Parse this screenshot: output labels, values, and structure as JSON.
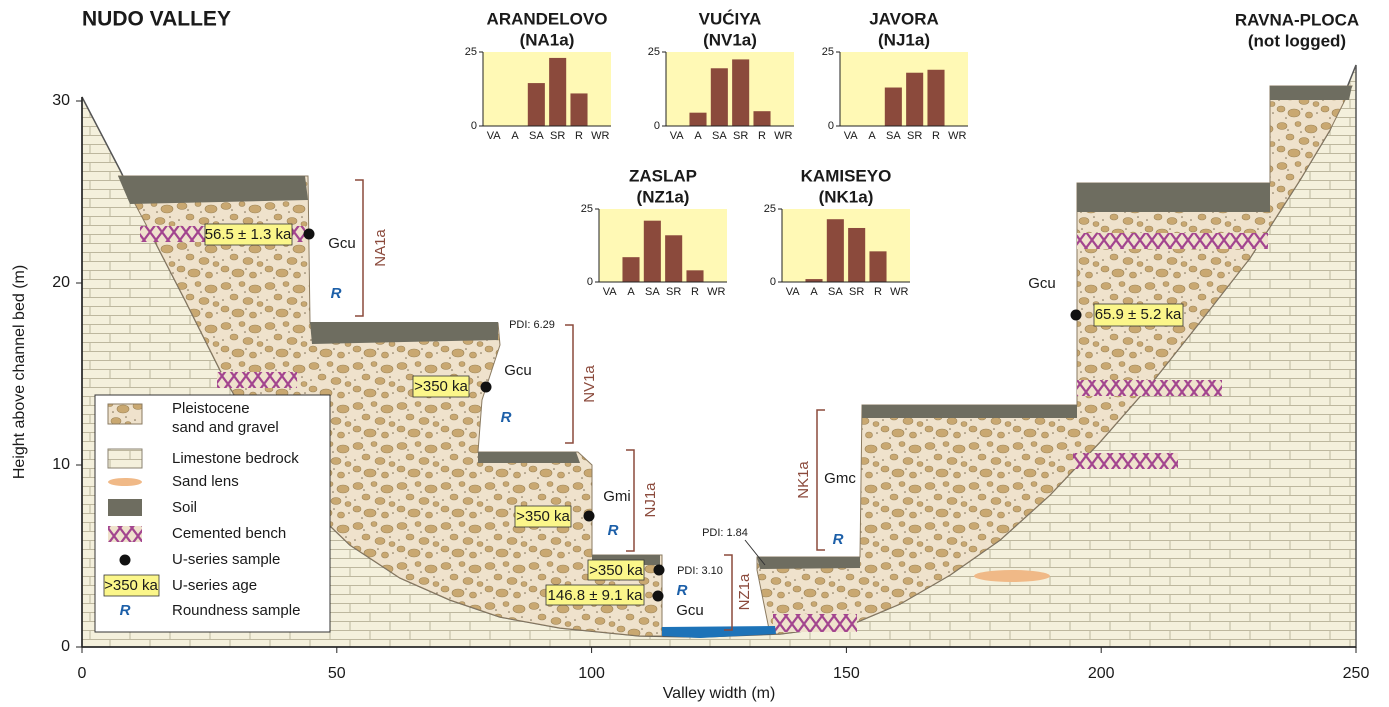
{
  "chart_data": [
    {
      "type": "section",
      "title": "NUDO VALLEY",
      "x_label": "Valley width (m)",
      "y_label": "Height above channel bed (m)",
      "xlim": [
        0,
        250
      ],
      "ylim": [
        0,
        30
      ],
      "xticks": [
        0,
        50,
        100,
        150,
        200,
        250
      ],
      "yticks": [
        0,
        10,
        20,
        30
      ],
      "site_label": "RAVNA-PLOCA",
      "site_note": "(not logged)",
      "units": [
        "NA1a",
        "NV1a",
        "NJ1a",
        "NZ1a",
        "NK1a"
      ],
      "facies": [
        "Gcu",
        "Gcu",
        "Gmi",
        "Gcu",
        "Gmc",
        "Gcu"
      ],
      "ages": [
        "56.5 ± 1.3 ka",
        ">350 ka",
        ">350 ka",
        ">350 ka",
        "146.8 ± 9.1 ka",
        "65.9 ± 5.2 ka"
      ],
      "pdi": [
        "PDI: 6.29",
        "PDI: 3.10",
        "PDI: 1.84"
      ],
      "roundness_marker": "R",
      "legend": [
        {
          "label": [
            "Pleistocene",
            "sand and gravel"
          ]
        },
        {
          "label": [
            "Limestone bedrock"
          ]
        },
        {
          "label": [
            "Sand lens"
          ]
        },
        {
          "label": [
            "Soil"
          ]
        },
        {
          "label": [
            "Cemented bench"
          ]
        },
        {
          "label": [
            "U-series sample"
          ]
        },
        {
          "label": [
            "U-series age"
          ],
          "symbol": ">350 ka"
        },
        {
          "label": [
            "Roundness sample"
          ]
        }
      ]
    },
    {
      "type": "bar",
      "title": "ARANDELOVO",
      "subtitle": "(NA1a)",
      "categories": [
        "VA",
        "A",
        "SA",
        "SR",
        "R",
        "WR"
      ],
      "values": [
        0,
        0,
        14.5,
        23,
        11,
        0
      ],
      "color": "#8b4a3c",
      "ylim": [
        0,
        25
      ],
      "yticks": [
        0,
        25
      ]
    },
    {
      "type": "bar",
      "title": "VUĆIYA",
      "subtitle": "(NV1a)",
      "categories": [
        "VA",
        "A",
        "SA",
        "SR",
        "R",
        "WR"
      ],
      "values": [
        0,
        4.5,
        19.5,
        22.5,
        5,
        0
      ],
      "color": "#8b4a3c",
      "ylim": [
        0,
        25
      ],
      "yticks": [
        0,
        25
      ]
    },
    {
      "type": "bar",
      "title": "JAVORA",
      "subtitle": "(NJ1a)",
      "categories": [
        "VA",
        "A",
        "SA",
        "SR",
        "R",
        "WR"
      ],
      "values": [
        0,
        0,
        13,
        18,
        19,
        0
      ],
      "color": "#8b4a3c",
      "ylim": [
        0,
        25
      ],
      "yticks": [
        0,
        25
      ]
    },
    {
      "type": "bar",
      "title": "ZASLAP",
      "subtitle": "(NZ1a)",
      "categories": [
        "VA",
        "A",
        "SA",
        "SR",
        "R",
        "WR"
      ],
      "values": [
        0,
        8.5,
        21,
        16,
        4,
        0
      ],
      "color": "#8b4a3c",
      "ylim": [
        0,
        25
      ],
      "yticks": [
        0,
        25
      ]
    },
    {
      "type": "bar",
      "title": "KAMISEYO",
      "subtitle": "(NK1a)",
      "categories": [
        "VA",
        "A",
        "SA",
        "SR",
        "R",
        "WR"
      ],
      "values": [
        0,
        1,
        21.5,
        18.5,
        10.5,
        0
      ],
      "color": "#8b4a3c",
      "ylim": [
        0,
        25
      ],
      "yticks": [
        0,
        25
      ]
    }
  ]
}
